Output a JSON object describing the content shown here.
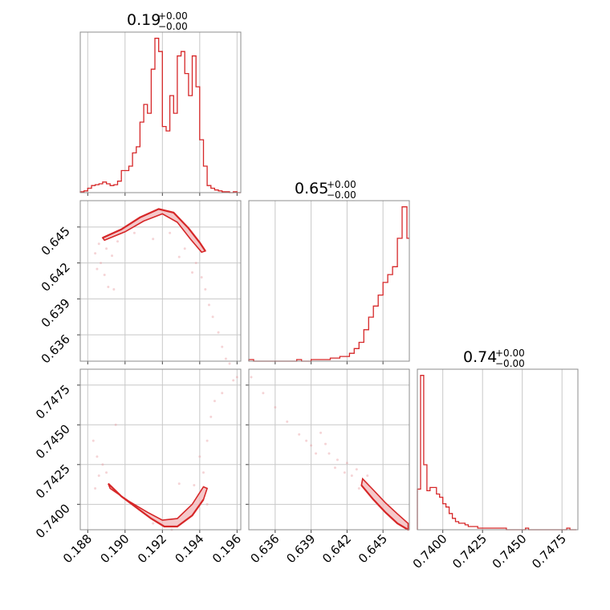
{
  "chart_data": {
    "type": "corner",
    "color": "#d62728",
    "parameters": [
      {
        "title_value": "0.19",
        "title_plus": "+0.00",
        "title_minus": "−0.00"
      },
      {
        "title_value": "0.65",
        "title_plus": "+0.00",
        "title_minus": "−0.00"
      },
      {
        "title_value": "0.74",
        "title_plus": "+0.00",
        "title_minus": "−0.00"
      }
    ],
    "axes": {
      "p0": {
        "range": [
          0.1876,
          0.1962
        ],
        "ticks": [
          0.188,
          0.19,
          0.192,
          0.194,
          0.196
        ],
        "tick_labels": [
          "0.188",
          "0.190",
          "0.192",
          "0.194",
          "0.196"
        ]
      },
      "p1": {
        "range": [
          0.6338,
          0.6472
        ],
        "ticks": [
          0.636,
          0.639,
          0.642,
          0.645
        ],
        "tick_labels": [
          "0.636",
          "0.639",
          "0.642",
          "0.645"
        ]
      },
      "p2": {
        "range": [
          0.7384,
          0.7485
        ],
        "ticks": [
          0.74,
          0.7425,
          0.745,
          0.7475
        ],
        "tick_labels": [
          "0.7400",
          "0.7425",
          "0.7450",
          "0.7475"
        ]
      }
    },
    "histograms": [
      {
        "param": "p0",
        "edges": [
          0.1876,
          0.1878,
          0.188,
          0.1882,
          0.1884,
          0.1886,
          0.1888,
          0.189,
          0.1892,
          0.1894,
          0.1896,
          0.1898,
          0.19,
          0.1902,
          0.1904,
          0.1906,
          0.1908,
          0.191,
          0.1912,
          0.1914,
          0.1916,
          0.1918,
          0.192,
          0.1922,
          0.1924,
          0.1926,
          0.1928,
          0.193,
          0.1932,
          0.1934,
          0.1936,
          0.1938,
          0.194,
          0.1942,
          0.1944,
          0.1946,
          0.1948,
          0.195,
          0.1952,
          0.1954,
          0.1956,
          0.1958,
          0.196,
          0.1962
        ],
        "counts": [
          1,
          2,
          5,
          8,
          9,
          10,
          12,
          10,
          8,
          9,
          13,
          25,
          25,
          30,
          45,
          52,
          80,
          100,
          90,
          140,
          175,
          160,
          75,
          70,
          110,
          90,
          155,
          160,
          135,
          110,
          155,
          120,
          60,
          30,
          8,
          5,
          3,
          2,
          1,
          1,
          0,
          1,
          0
        ]
      },
      {
        "param": "p1",
        "edges": [
          0.6338,
          0.6342,
          0.6346,
          0.635,
          0.6354,
          0.6358,
          0.6362,
          0.6366,
          0.637,
          0.6374,
          0.6378,
          0.6382,
          0.6386,
          0.639,
          0.6394,
          0.6398,
          0.6402,
          0.6406,
          0.641,
          0.6414,
          0.6418,
          0.6422,
          0.6426,
          0.643,
          0.6434,
          0.6438,
          0.6442,
          0.6446,
          0.645,
          0.6454,
          0.6458,
          0.6462,
          0.6466,
          0.647,
          0.6472
        ],
        "counts": [
          1,
          0,
          0,
          0,
          0,
          0,
          0,
          0,
          0,
          0,
          1,
          0,
          0,
          1,
          1,
          1,
          1,
          2,
          2,
          3,
          3,
          5,
          8,
          12,
          20,
          28,
          35,
          42,
          50,
          55,
          60,
          78,
          98,
          78
        ]
      },
      {
        "param": "p2",
        "edges": [
          0.7384,
          0.7386,
          0.7388,
          0.739,
          0.7392,
          0.7394,
          0.7396,
          0.7398,
          0.74,
          0.7402,
          0.7404,
          0.7406,
          0.7408,
          0.741,
          0.7412,
          0.7414,
          0.7416,
          0.7418,
          0.742,
          0.7422,
          0.7424,
          0.7426,
          0.7428,
          0.743,
          0.7432,
          0.7434,
          0.7436,
          0.7438,
          0.744,
          0.7442,
          0.7444,
          0.7446,
          0.7448,
          0.745,
          0.7452,
          0.7454,
          0.7456,
          0.7458,
          0.746,
          0.7462,
          0.7464,
          0.7466,
          0.7468,
          0.747,
          0.7472,
          0.7474,
          0.7476,
          0.7478,
          0.748,
          0.7482,
          0.7484
        ],
        "counts": [
          25,
          95,
          40,
          24,
          26,
          26,
          22,
          20,
          16,
          14,
          10,
          7,
          5,
          4,
          4,
          3,
          2,
          2,
          2,
          1,
          1,
          1,
          1,
          1,
          1,
          1,
          1,
          1,
          0,
          0,
          0,
          0,
          0,
          0,
          1,
          0,
          0,
          0,
          0,
          0,
          0,
          0,
          0,
          0,
          0,
          0,
          0,
          1,
          0,
          0
        ]
      }
    ],
    "scatter_panels": [
      {
        "x": "p0",
        "y": "p1",
        "contour_path": [
          [
            0.1888,
            0.6441
          ],
          [
            0.1898,
            0.6448
          ],
          [
            0.1908,
            0.6458
          ],
          [
            0.1918,
            0.6465
          ],
          [
            0.1926,
            0.6462
          ],
          [
            0.1934,
            0.6449
          ],
          [
            0.194,
            0.6437
          ],
          [
            0.1943,
            0.643
          ],
          [
            0.1941,
            0.6429
          ],
          [
            0.1935,
            0.644
          ],
          [
            0.1928,
            0.6454
          ],
          [
            0.192,
            0.6461
          ],
          [
            0.191,
            0.6455
          ],
          [
            0.19,
            0.6446
          ],
          [
            0.1889,
            0.6439
          ]
        ],
        "cloud": [
          [
            0.1886,
            0.6436
          ],
          [
            0.1884,
            0.6428
          ],
          [
            0.1887,
            0.642
          ],
          [
            0.1889,
            0.641
          ],
          [
            0.1891,
            0.64
          ],
          [
            0.1885,
            0.6415
          ],
          [
            0.189,
            0.6432
          ],
          [
            0.1893,
            0.6426
          ],
          [
            0.1938,
            0.642
          ],
          [
            0.1941,
            0.6408
          ],
          [
            0.1943,
            0.6398
          ],
          [
            0.1945,
            0.6385
          ],
          [
            0.1947,
            0.6375
          ],
          [
            0.195,
            0.6362
          ],
          [
            0.1952,
            0.635
          ],
          [
            0.1954,
            0.634
          ],
          [
            0.1956,
            0.6336
          ],
          [
            0.1929,
            0.6425
          ],
          [
            0.1915,
            0.644
          ],
          [
            0.1905,
            0.6445
          ],
          [
            0.1896,
            0.6438
          ],
          [
            0.1932,
            0.6432
          ],
          [
            0.1924,
            0.6445
          ],
          [
            0.1936,
            0.6412
          ],
          [
            0.1894,
            0.6398
          ]
        ]
      },
      {
        "x": "p0",
        "y": "p2",
        "contour_path": [
          [
            0.1891,
            0.7413
          ],
          [
            0.1898,
            0.7405
          ],
          [
            0.1906,
            0.7398
          ],
          [
            0.1914,
            0.7391
          ],
          [
            0.1921,
            0.7386
          ],
          [
            0.1928,
            0.7386
          ],
          [
            0.1936,
            0.7393
          ],
          [
            0.1942,
            0.7403
          ],
          [
            0.1944,
            0.741
          ],
          [
            0.1942,
            0.7411
          ],
          [
            0.1936,
            0.74
          ],
          [
            0.1928,
            0.7391
          ],
          [
            0.192,
            0.739
          ],
          [
            0.1912,
            0.7395
          ],
          [
            0.1902,
            0.7402
          ],
          [
            0.1892,
            0.741
          ]
        ],
        "cloud": [
          [
            0.1883,
            0.744
          ],
          [
            0.1885,
            0.743
          ],
          [
            0.1886,
            0.7418
          ],
          [
            0.1888,
            0.7425
          ],
          [
            0.189,
            0.742
          ],
          [
            0.1884,
            0.741
          ],
          [
            0.1895,
            0.745
          ],
          [
            0.194,
            0.743
          ],
          [
            0.1942,
            0.742
          ],
          [
            0.1944,
            0.744
          ],
          [
            0.1946,
            0.7455
          ],
          [
            0.1948,
            0.7465
          ],
          [
            0.1952,
            0.747
          ],
          [
            0.1958,
            0.7478
          ],
          [
            0.196,
            0.748
          ],
          [
            0.1937,
            0.7412
          ],
          [
            0.1944,
            0.74
          ],
          [
            0.1929,
            0.7413
          ],
          [
            0.1915,
            0.7388
          ],
          [
            0.1925,
            0.7384
          ]
        ]
      },
      {
        "x": "p1",
        "y": "p2",
        "contour_path": [
          [
            0.6432,
            0.7412
          ],
          [
            0.6442,
            0.7403
          ],
          [
            0.6452,
            0.7395
          ],
          [
            0.6462,
            0.7388
          ],
          [
            0.6471,
            0.7384
          ],
          [
            0.6471,
            0.7388
          ],
          [
            0.6462,
            0.7394
          ],
          [
            0.6452,
            0.7401
          ],
          [
            0.6442,
            0.7409
          ],
          [
            0.6433,
            0.7416
          ]
        ],
        "cloud": [
          [
            0.634,
            0.748
          ],
          [
            0.635,
            0.747
          ],
          [
            0.636,
            0.7461
          ],
          [
            0.637,
            0.7452
          ],
          [
            0.638,
            0.7444
          ],
          [
            0.639,
            0.7437
          ],
          [
            0.6398,
            0.7445
          ],
          [
            0.6405,
            0.7432
          ],
          [
            0.6412,
            0.7428
          ],
          [
            0.6418,
            0.742
          ],
          [
            0.6424,
            0.7418
          ],
          [
            0.6428,
            0.7422
          ],
          [
            0.6386,
            0.744
          ],
          [
            0.6394,
            0.7432
          ],
          [
            0.6402,
            0.7438
          ],
          [
            0.641,
            0.7423
          ],
          [
            0.642,
            0.7426
          ],
          [
            0.643,
            0.741
          ],
          [
            0.6437,
            0.7418
          ]
        ]
      }
    ]
  }
}
